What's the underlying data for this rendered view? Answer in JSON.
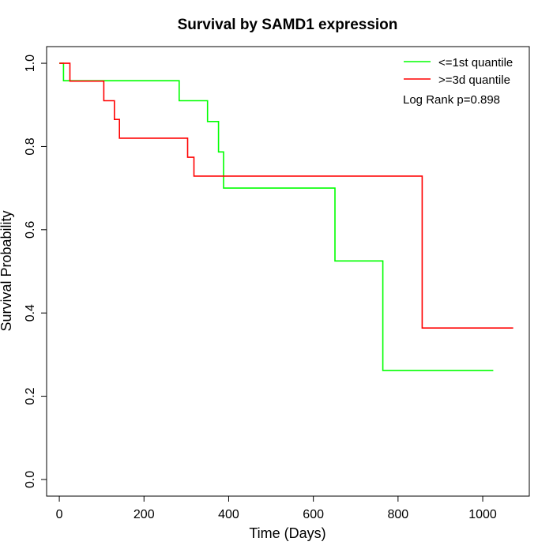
{
  "chart_data": {
    "type": "line",
    "title": "Survival by SAMD1 expression",
    "xlabel": "Time (Days)",
    "ylabel": "Survival Probability",
    "xlim": [
      -30,
      1110
    ],
    "ylim": [
      -0.04,
      1.04
    ],
    "xticks": [
      0,
      200,
      400,
      600,
      800,
      1000
    ],
    "yticks": [
      0.0,
      0.2,
      0.4,
      0.6,
      0.8,
      1.0
    ],
    "xtick_labels": [
      "0",
      "200",
      "400",
      "600",
      "800",
      "1000"
    ],
    "ytick_labels": [
      "0.0",
      "0.2",
      "0.4",
      "0.6",
      "0.8",
      "1.0"
    ],
    "grid": false,
    "legend_position": "top-right",
    "annotation": "Log Rank p=0.898",
    "series": [
      {
        "name": "<=1st quantile",
        "color": "#00ff00",
        "x": [
          0,
          10,
          10,
          283,
          283,
          350,
          350,
          376,
          376,
          388,
          388,
          651,
          651,
          764,
          764,
          1025
        ],
        "y": [
          1.0,
          1.0,
          0.958,
          0.958,
          0.91,
          0.91,
          0.86,
          0.86,
          0.787,
          0.787,
          0.7,
          0.7,
          0.525,
          0.525,
          0.262,
          0.262
        ]
      },
      {
        "name": ">=3d quantile",
        "color": "#ff0000",
        "x": [
          0,
          25,
          25,
          105,
          105,
          130,
          130,
          142,
          142,
          303,
          303,
          318,
          318,
          857,
          857,
          1072
        ],
        "y": [
          1.0,
          1.0,
          0.957,
          0.957,
          0.91,
          0.91,
          0.865,
          0.865,
          0.82,
          0.82,
          0.774,
          0.774,
          0.729,
          0.729,
          0.364,
          0.364
        ]
      }
    ]
  }
}
